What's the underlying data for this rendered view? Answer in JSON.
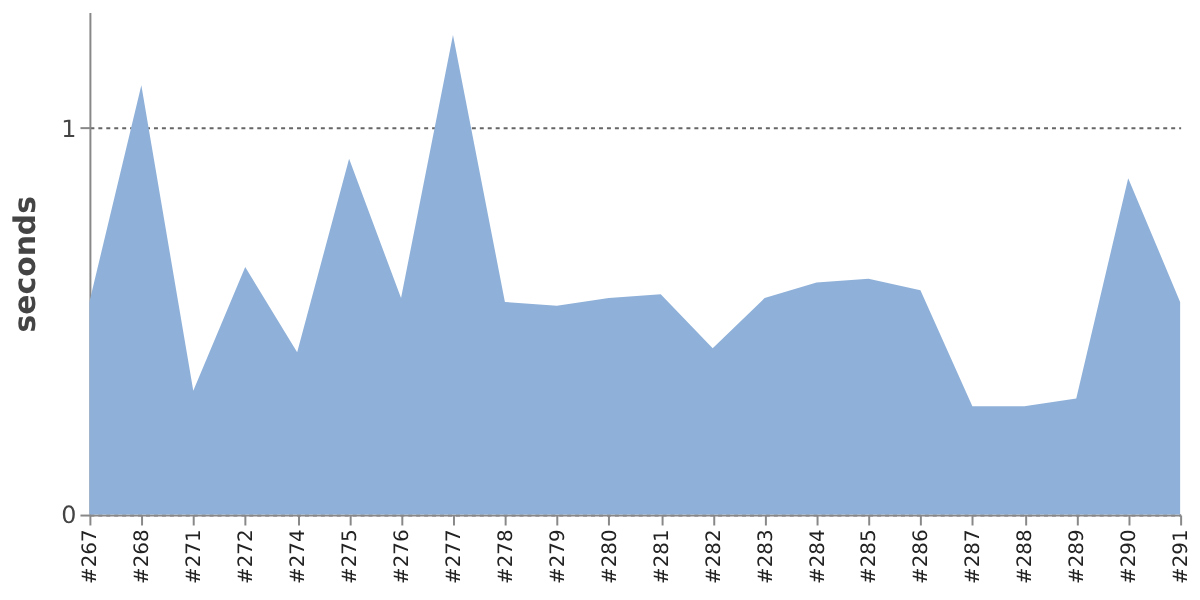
{
  "chart_data": {
    "type": "area",
    "ylabel": "seconds",
    "categories": [
      "#267",
      "#268",
      "#271",
      "#272",
      "#274",
      "#275",
      "#276",
      "#277",
      "#278",
      "#279",
      "#280",
      "#281",
      "#282",
      "#283",
      "#284",
      "#285",
      "#286",
      "#287",
      "#288",
      "#289",
      "#290",
      "#291"
    ],
    "series": [
      {
        "color": "#8fb1d9",
        "values": [
          0.55,
          1.11,
          0.32,
          0.64,
          0.42,
          0.92,
          0.56,
          1.24,
          0.55,
          0.54,
          0.56,
          0.57,
          0.43,
          0.56,
          0.6,
          0.61,
          0.58,
          0.28,
          0.28,
          0.3,
          0.87,
          0.55
        ]
      }
    ],
    "ylim": [
      0,
      1.3
    ],
    "yticks": [
      0,
      1
    ],
    "grid": "y"
  }
}
